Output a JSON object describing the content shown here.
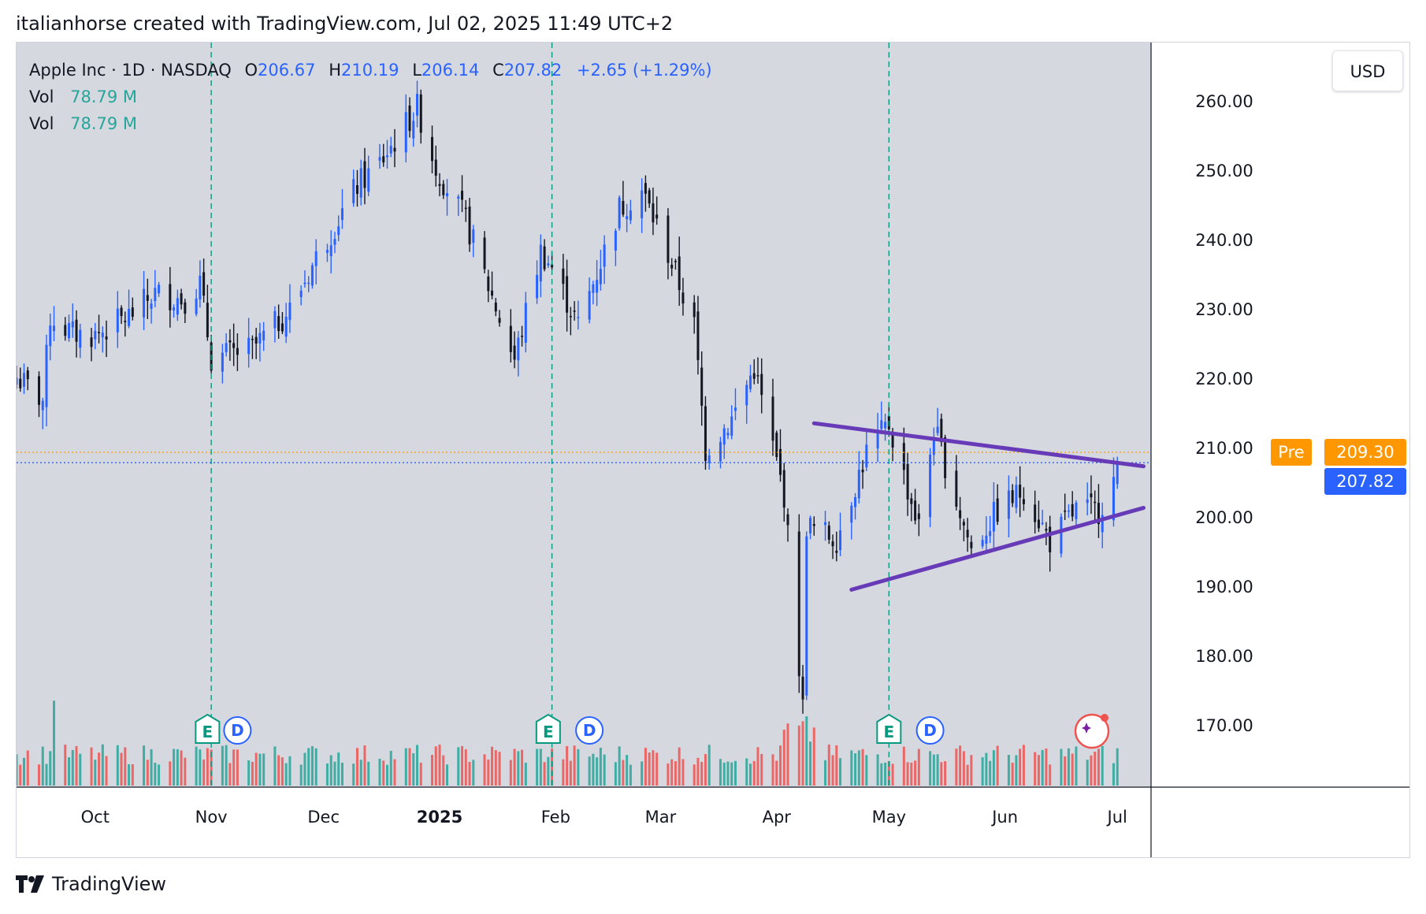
{
  "caption": "italianhorse created with TradingView.com, Jul 02, 2025 11:49 UTC+2",
  "legend": {
    "symbol": "Apple Inc · 1D · NASDAQ",
    "o_label": "O",
    "o_value": "206.67",
    "h_label": "H",
    "h_value": "210.19",
    "l_label": "L",
    "l_value": "206.14",
    "c_label": "C",
    "c_value": "207.82",
    "change": "+2.65 (+1.29%)",
    "vol_rows": [
      {
        "label": "Vol",
        "value": "78.79 M"
      },
      {
        "label": "Vol",
        "value": "78.79 M"
      }
    ]
  },
  "currency_button": "USD",
  "price_badges": {
    "pre_label": "Pre",
    "pre_value": "209.30",
    "last_value": "207.82"
  },
  "event_markers": {
    "earnings": "E",
    "dividend": "D"
  },
  "logo_text": "TradingView",
  "colors": {
    "up": "#2962ff",
    "down": "#131722",
    "vol_up": "#26a69a",
    "vol_down": "#ef5350",
    "trendline": "#673ab7",
    "pre_line": "#ff9800",
    "last_line": "#2962ff",
    "session_line": "#089981",
    "background": "#d6d8e0"
  },
  "chart_data": {
    "type": "candlestick",
    "title": "Apple Inc · 1D · NASDAQ",
    "x_tick_labels": [
      "Oct",
      "Nov",
      "Dec",
      "2025",
      "Feb",
      "Mar",
      "Apr",
      "May",
      "Jun",
      "Jul"
    ],
    "y_tick_labels": [
      "260.00",
      "250.00",
      "240.00",
      "230.00",
      "220.00",
      "210.00",
      "200.00",
      "190.00",
      "180.00",
      "170.00"
    ],
    "ylim": [
      162,
      270
    ],
    "grid": false,
    "session_breaks": [
      "2024-11-01",
      "2025-01-31",
      "2025-05-01"
    ],
    "earnings_dates": [
      "2024-10-31",
      "2025-01-30",
      "2025-05-01"
    ],
    "dividend_dates": [
      "2024-11-08",
      "2025-02-10",
      "2025-05-12"
    ],
    "pre_market_price": 209.3,
    "last_price": 207.82,
    "trendlines": [
      {
        "name": "",
        "from": [
          "2025-04-11",
          213.5
        ],
        "to": [
          "2025-07-08",
          207.3
        ]
      },
      {
        "name": "",
        "from": [
          "2025-04-21",
          189.5
        ],
        "to": [
          "2025-07-08",
          201.3
        ]
      }
    ],
    "close_series": [
      {
        "date": "2024-09-10",
        "close": 220.1
      },
      {
        "date": "2024-09-17",
        "close": 216.8
      },
      {
        "date": "2024-09-19",
        "close": 228.9
      },
      {
        "date": "2024-09-25",
        "close": 226.4
      },
      {
        "date": "2024-10-01",
        "close": 226.2
      },
      {
        "date": "2024-10-10",
        "close": 229.0
      },
      {
        "date": "2024-10-17",
        "close": 232.2
      },
      {
        "date": "2024-10-25",
        "close": 231.4
      },
      {
        "date": "2024-10-29",
        "close": 233.7
      },
      {
        "date": "2024-11-01",
        "close": 222.9
      },
      {
        "date": "2024-11-12",
        "close": 224.2
      },
      {
        "date": "2024-11-22",
        "close": 229.9
      },
      {
        "date": "2024-11-29",
        "close": 237.3
      },
      {
        "date": "2024-12-10",
        "close": 247.8
      },
      {
        "date": "2024-12-16",
        "close": 251.0
      },
      {
        "date": "2024-12-26",
        "close": 259.0
      },
      {
        "date": "2024-12-31",
        "close": 250.4
      },
      {
        "date": "2025-01-08",
        "close": 242.7
      },
      {
        "date": "2025-01-14",
        "close": 233.3
      },
      {
        "date": "2025-01-21",
        "close": 222.6
      },
      {
        "date": "2025-01-28",
        "close": 238.3
      },
      {
        "date": "2025-01-31",
        "close": 236.0
      },
      {
        "date": "2025-02-07",
        "close": 227.6
      },
      {
        "date": "2025-02-18",
        "close": 244.5
      },
      {
        "date": "2025-02-24",
        "close": 247.1
      },
      {
        "date": "2025-03-03",
        "close": 238.0
      },
      {
        "date": "2025-03-10",
        "close": 227.5
      },
      {
        "date": "2025-03-13",
        "close": 209.7
      },
      {
        "date": "2025-03-20",
        "close": 214.1
      },
      {
        "date": "2025-03-26",
        "close": 221.5
      },
      {
        "date": "2025-04-03",
        "close": 203.2
      },
      {
        "date": "2025-04-08",
        "close": 172.4
      },
      {
        "date": "2025-04-09",
        "close": 198.9
      },
      {
        "date": "2025-04-11",
        "close": 198.2
      },
      {
        "date": "2025-04-17",
        "close": 196.9
      },
      {
        "date": "2025-04-25",
        "close": 209.3
      },
      {
        "date": "2025-05-01",
        "close": 213.3
      },
      {
        "date": "2025-05-09",
        "close": 198.5
      },
      {
        "date": "2025-05-13",
        "close": 212.9
      },
      {
        "date": "2025-05-23",
        "close": 195.3
      },
      {
        "date": "2025-05-30",
        "close": 200.9
      },
      {
        "date": "2025-06-06",
        "close": 203.9
      },
      {
        "date": "2025-06-13",
        "close": 196.5
      },
      {
        "date": "2025-06-20",
        "close": 201.0
      },
      {
        "date": "2025-06-26",
        "close": 201.0
      },
      {
        "date": "2025-06-30",
        "close": 205.2
      },
      {
        "date": "2025-07-01",
        "close": 207.8
      }
    ]
  }
}
